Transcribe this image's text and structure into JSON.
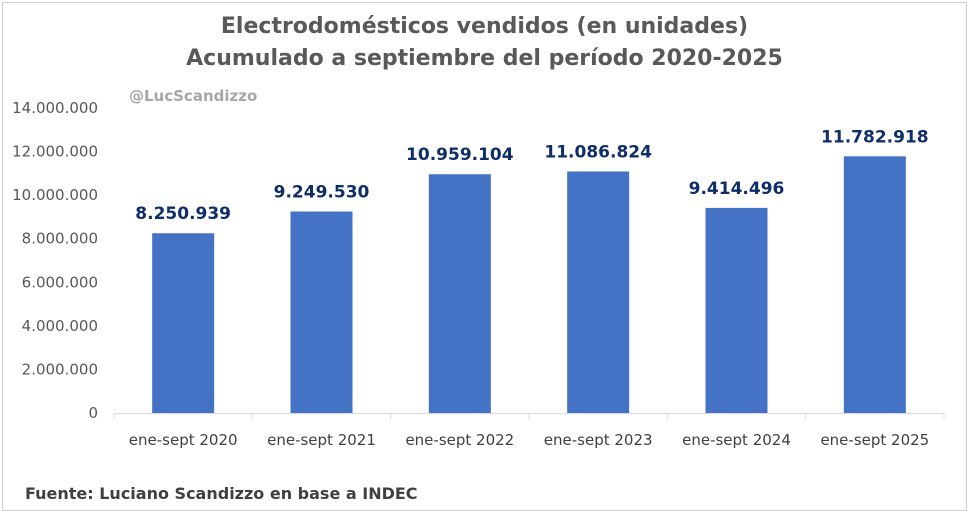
{
  "chart_data": {
    "type": "bar",
    "title_line1": "Electrodomésticos vendidos (en unidades)",
    "title_line2": "Acumulado a septiembre del período 2020-2025",
    "watermark": "@LucScandizzo",
    "source": "Fuente: Luciano Scandizzo en base a INDEC",
    "categories": [
      "ene-sept 2020",
      "ene-sept 2021",
      "ene-sept 2022",
      "ene-sept 2023",
      "ene-sept 2024",
      "ene-sept 2025"
    ],
    "values": [
      8250939,
      9249530,
      10959104,
      11086824,
      9414496,
      11782918
    ],
    "value_labels": [
      "8.250.939",
      "9.249.530",
      "10.959.104",
      "11.086.824",
      "9.414.496",
      "11.782.918"
    ],
    "ylim": [
      0,
      14000000
    ],
    "yticks": [
      0,
      2000000,
      4000000,
      6000000,
      8000000,
      10000000,
      12000000,
      14000000
    ],
    "ytick_labels": [
      "0",
      "2.000.000",
      "4.000.000",
      "6.000.000",
      "8.000.000",
      "10.000.000",
      "12.000.000",
      "14.000.000"
    ],
    "bar_color": "#4472c4",
    "label_color": "#0f2d69",
    "grid": false,
    "legend": "none"
  }
}
